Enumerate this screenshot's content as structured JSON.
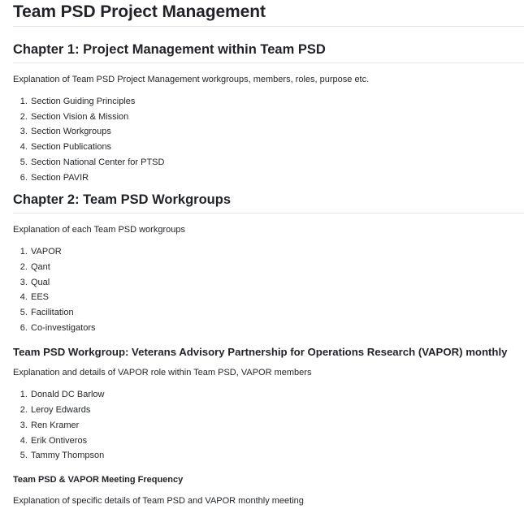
{
  "document": {
    "title": "Team PSD Project Management",
    "chapter1": {
      "heading": "Chapter 1: Project Management within Team PSD",
      "intro": "Explanation of Team PSD Project Management workgroups, members, roles, purpose etc.",
      "items": [
        "Section Guiding Principles",
        "Section Vision & Mission",
        "Section Workgroups",
        "Section Publications",
        "Section National Center for PTSD",
        "Section PAVIR"
      ]
    },
    "chapter2": {
      "heading": "Chapter 2: Team PSD Workgroups",
      "intro": "Explanation of each Team PSD workgroups",
      "items": [
        "VAPOR",
        "Qant",
        "Qual",
        "EES",
        "Facilitation",
        "Co-investigators"
      ]
    },
    "workgroup": {
      "heading": "Team PSD Workgroup: Veterans Advisory Partnership for Operations Research (VAPOR) monthly",
      "intro": "Explanation and details of VAPOR role within Team PSD, VAPOR members",
      "members": [
        "Donald DC Barlow",
        "Leroy Edwards",
        "Ren Kramer",
        "Erik Ontiveros",
        "Tammy Thompson"
      ]
    },
    "meeting": {
      "heading": "Team PSD & VAPOR Meeting Frequency",
      "intro": "Explanation of specific details of Team PSD and VAPOR monthly meeting"
    }
  }
}
